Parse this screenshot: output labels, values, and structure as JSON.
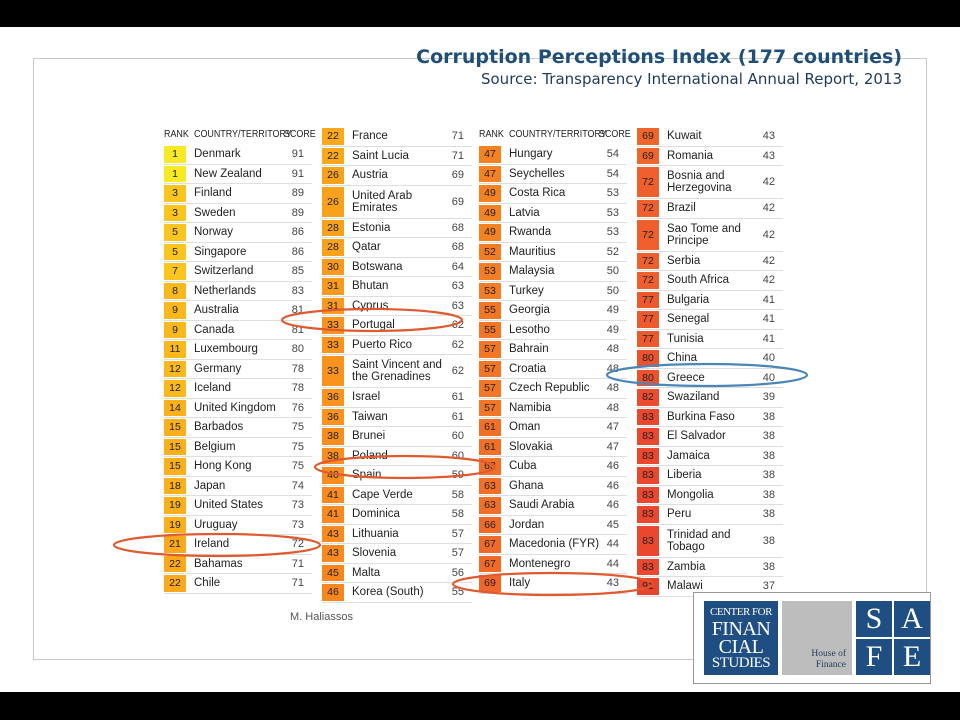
{
  "title": {
    "main": "Corruption Perceptions Index",
    "paren": "(177 countries)",
    "source": "Source: Transparency International Annual Report, 2013"
  },
  "headers": {
    "rank": "RANK",
    "country": "COUNTRY/TERRITORY",
    "score": "SCORE"
  },
  "author": "M. Haliassos",
  "logo": {
    "cfs_line1": "CENTER FOR",
    "cfs_line2": "FINAN",
    "cfs_line3": "CIAL",
    "cfs_line4": "STUDIES",
    "hof_line1": "House of",
    "hof_line2": "Finance",
    "safe": [
      "S",
      "A",
      "F",
      "E"
    ]
  },
  "rank_colors": {
    "top": "#f7ea25",
    "upper": "#f9b51b",
    "mid": "#f58220",
    "lower": "#ef6530",
    "bottom": "#e8432d"
  },
  "highlight_colors": {
    "circle": "#e05a2f",
    "greece": "#4a86b8"
  },
  "columns": [
    {
      "rows": [
        {
          "rank": "1",
          "name": "Denmark",
          "score": "91",
          "color": "#f7ea25"
        },
        {
          "rank": "1",
          "name": "New Zealand",
          "score": "91",
          "color": "#f7ea25"
        },
        {
          "rank": "3",
          "name": "Finland",
          "score": "89",
          "color": "#f9c51e"
        },
        {
          "rank": "3",
          "name": "Sweden",
          "score": "89",
          "color": "#f9c51e"
        },
        {
          "rank": "5",
          "name": "Norway",
          "score": "86",
          "color": "#f9c51e"
        },
        {
          "rank": "5",
          "name": "Singapore",
          "score": "86",
          "color": "#f9c51e"
        },
        {
          "rank": "7",
          "name": "Switzerland",
          "score": "85",
          "color": "#f9c51e"
        },
        {
          "rank": "8",
          "name": "Netherlands",
          "score": "83",
          "color": "#f9b81c"
        },
        {
          "rank": "9",
          "name": "Australia",
          "score": "81",
          "color": "#f9b81c"
        },
        {
          "rank": "9",
          "name": "Canada",
          "score": "81",
          "color": "#f9b81c"
        },
        {
          "rank": "11",
          "name": "Luxembourg",
          "score": "80",
          "color": "#f9b81c"
        },
        {
          "rank": "12",
          "name": "Germany",
          "score": "78",
          "color": "#f9b81c"
        },
        {
          "rank": "12",
          "name": "Iceland",
          "score": "78",
          "color": "#f9b81c"
        },
        {
          "rank": "14",
          "name": "United Kingdom",
          "score": "76",
          "color": "#f9b01b"
        },
        {
          "rank": "15",
          "name": "Barbados",
          "score": "75",
          "color": "#f9b01b"
        },
        {
          "rank": "15",
          "name": "Belgium",
          "score": "75",
          "color": "#f9b01b"
        },
        {
          "rank": "15",
          "name": "Hong Kong",
          "score": "75",
          "color": "#f9b01b"
        },
        {
          "rank": "18",
          "name": "Japan",
          "score": "74",
          "color": "#f9b01b"
        },
        {
          "rank": "19",
          "name": "United States",
          "score": "73",
          "color": "#f9b01b"
        },
        {
          "rank": "19",
          "name": "Uruguay",
          "score": "73",
          "color": "#f9b01b"
        },
        {
          "rank": "21",
          "name": "Ireland",
          "score": "72",
          "color": "#f9a91b"
        },
        {
          "rank": "22",
          "name": "Bahamas",
          "score": "71",
          "color": "#f9a91b"
        },
        {
          "rank": "22",
          "name": "Chile",
          "score": "71",
          "color": "#f9a91b"
        }
      ]
    },
    {
      "rows": [
        {
          "rank": "22",
          "name": "France",
          "score": "71",
          "color": "#f9a91b"
        },
        {
          "rank": "22",
          "name": "Saint Lucia",
          "score": "71",
          "color": "#f9a91b"
        },
        {
          "rank": "26",
          "name": "Austria",
          "score": "69",
          "color": "#f8a21c"
        },
        {
          "rank": "26",
          "name": "United Arab Emirates",
          "score": "69",
          "color": "#f8a21c",
          "tall": true
        },
        {
          "rank": "28",
          "name": "Estonia",
          "score": "68",
          "color": "#f8a21c"
        },
        {
          "rank": "28",
          "name": "Qatar",
          "score": "68",
          "color": "#f8a21c"
        },
        {
          "rank": "30",
          "name": "Botswana",
          "score": "64",
          "color": "#f89a1d"
        },
        {
          "rank": "31",
          "name": "Bhutan",
          "score": "63",
          "color": "#f89a1d"
        },
        {
          "rank": "31",
          "name": "Cyprus",
          "score": "63",
          "color": "#f89a1d"
        },
        {
          "rank": "33",
          "name": "Portugal",
          "score": "62",
          "color": "#f8941d"
        },
        {
          "rank": "33",
          "name": "Puerto Rico",
          "score": "62",
          "color": "#f8941d"
        },
        {
          "rank": "33",
          "name": "Saint Vincent and the Grenadines",
          "score": "62",
          "color": "#f8941d",
          "tall": true
        },
        {
          "rank": "36",
          "name": "Israel",
          "score": "61",
          "color": "#f8941d"
        },
        {
          "rank": "36",
          "name": "Taiwan",
          "score": "61",
          "color": "#f8941d"
        },
        {
          "rank": "38",
          "name": "Brunei",
          "score": "60",
          "color": "#f88e1e"
        },
        {
          "rank": "38",
          "name": "Poland",
          "score": "60",
          "color": "#f88e1e"
        },
        {
          "rank": "40",
          "name": "Spain",
          "score": "59",
          "color": "#f88e1e"
        },
        {
          "rank": "41",
          "name": "Cape Verde",
          "score": "58",
          "color": "#f88a1f"
        },
        {
          "rank": "41",
          "name": "Dominica",
          "score": "58",
          "color": "#f88a1f"
        },
        {
          "rank": "43",
          "name": "Lithuania",
          "score": "57",
          "color": "#f88a1f"
        },
        {
          "rank": "43",
          "name": "Slovenia",
          "score": "57",
          "color": "#f88a1f"
        },
        {
          "rank": "45",
          "name": "Malta",
          "score": "56",
          "color": "#f7861f"
        },
        {
          "rank": "46",
          "name": "Korea (South)",
          "score": "55",
          "color": "#f7861f"
        }
      ]
    },
    {
      "rows": [
        {
          "rank": "47",
          "name": "Hungary",
          "score": "54",
          "color": "#f58220"
        },
        {
          "rank": "47",
          "name": "Seychelles",
          "score": "54",
          "color": "#f58220"
        },
        {
          "rank": "49",
          "name": "Costa Rica",
          "score": "53",
          "color": "#f58220"
        },
        {
          "rank": "49",
          "name": "Latvia",
          "score": "53",
          "color": "#f58220"
        },
        {
          "rank": "49",
          "name": "Rwanda",
          "score": "53",
          "color": "#f58220"
        },
        {
          "rank": "52",
          "name": "Mauritius",
          "score": "52",
          "color": "#f47c22"
        },
        {
          "rank": "53",
          "name": "Malaysia",
          "score": "50",
          "color": "#f47c22"
        },
        {
          "rank": "53",
          "name": "Turkey",
          "score": "50",
          "color": "#f47c22"
        },
        {
          "rank": "55",
          "name": "Georgia",
          "score": "49",
          "color": "#f37624"
        },
        {
          "rank": "55",
          "name": "Lesotho",
          "score": "49",
          "color": "#f37624"
        },
        {
          "rank": "57",
          "name": "Bahrain",
          "score": "48",
          "color": "#f37624"
        },
        {
          "rank": "57",
          "name": "Croatia",
          "score": "48",
          "color": "#f37624"
        },
        {
          "rank": "57",
          "name": "Czech Republic",
          "score": "48",
          "color": "#f37624"
        },
        {
          "rank": "57",
          "name": "Namibia",
          "score": "48",
          "color": "#f37624"
        },
        {
          "rank": "61",
          "name": "Oman",
          "score": "47",
          "color": "#f27026"
        },
        {
          "rank": "61",
          "name": "Slovakia",
          "score": "47",
          "color": "#f27026"
        },
        {
          "rank": "63",
          "name": "Cuba",
          "score": "46",
          "color": "#f27026"
        },
        {
          "rank": "63",
          "name": "Ghana",
          "score": "46",
          "color": "#f27026"
        },
        {
          "rank": "63",
          "name": "Saudi Arabia",
          "score": "46",
          "color": "#f27026"
        },
        {
          "rank": "66",
          "name": "Jordan",
          "score": "45",
          "color": "#f16a28"
        },
        {
          "rank": "67",
          "name": "Macedonia (FYR)",
          "score": "44",
          "color": "#f16a28"
        },
        {
          "rank": "67",
          "name": "Montenegro",
          "score": "44",
          "color": "#f16a28"
        },
        {
          "rank": "69",
          "name": "Italy",
          "score": "43",
          "color": "#f0652a"
        }
      ]
    },
    {
      "rows": [
        {
          "rank": "69",
          "name": "Kuwait",
          "score": "43",
          "color": "#f0652a"
        },
        {
          "rank": "69",
          "name": "Romania",
          "score": "43",
          "color": "#f0652a"
        },
        {
          "rank": "72",
          "name": "Bosnia and Herzegovina",
          "score": "42",
          "color": "#ef5f2b",
          "tall": true
        },
        {
          "rank": "72",
          "name": "Brazil",
          "score": "42",
          "color": "#ef5f2b"
        },
        {
          "rank": "72",
          "name": "Sao Tome and Principe",
          "score": "42",
          "color": "#ef5f2b",
          "tall": true
        },
        {
          "rank": "72",
          "name": "Serbia",
          "score": "42",
          "color": "#ef5f2b"
        },
        {
          "rank": "72",
          "name": "South Africa",
          "score": "42",
          "color": "#ef5f2b"
        },
        {
          "rank": "77",
          "name": "Bulgaria",
          "score": "41",
          "color": "#ed592c"
        },
        {
          "rank": "77",
          "name": "Senegal",
          "score": "41",
          "color": "#ed592c"
        },
        {
          "rank": "77",
          "name": "Tunisia",
          "score": "41",
          "color": "#ed592c"
        },
        {
          "rank": "80",
          "name": "China",
          "score": "40",
          "color": "#ec532d"
        },
        {
          "rank": "80",
          "name": "Greece",
          "score": "40",
          "color": "#ec532d"
        },
        {
          "rank": "82",
          "name": "Swaziland",
          "score": "39",
          "color": "#eb4d2e"
        },
        {
          "rank": "83",
          "name": "Burkina Faso",
          "score": "38",
          "color": "#ea472e"
        },
        {
          "rank": "83",
          "name": "El Salvador",
          "score": "38",
          "color": "#ea472e"
        },
        {
          "rank": "83",
          "name": "Jamaica",
          "score": "38",
          "color": "#ea472e"
        },
        {
          "rank": "83",
          "name": "Liberia",
          "score": "38",
          "color": "#ea472e"
        },
        {
          "rank": "83",
          "name": "Mongolia",
          "score": "38",
          "color": "#ea472e"
        },
        {
          "rank": "83",
          "name": "Peru",
          "score": "38",
          "color": "#ea472e"
        },
        {
          "rank": "83",
          "name": "Trinidad and Tobago",
          "score": "38",
          "color": "#ea472e",
          "tall": true
        },
        {
          "rank": "83",
          "name": "Zambia",
          "score": "38",
          "color": "#ea472e"
        },
        {
          "rank": "91",
          "name": "Malawi",
          "score": "37",
          "color": "#e8432d"
        }
      ]
    }
  ]
}
